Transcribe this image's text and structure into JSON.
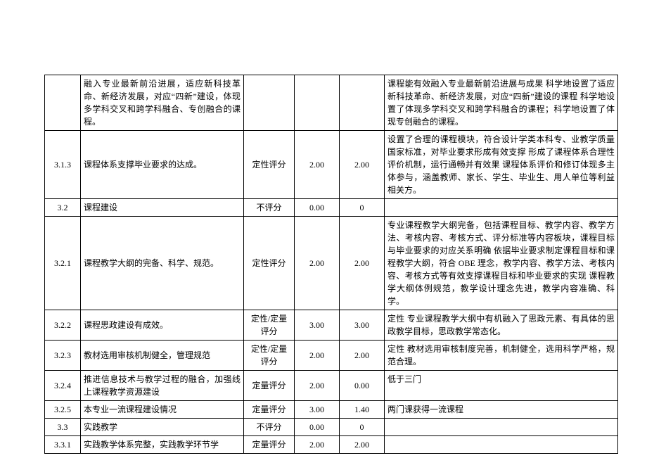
{
  "table": {
    "columns": {
      "idx_width": 42,
      "item_width": 223,
      "type_width": 63,
      "sc1_width": 55,
      "sc2_width": 55,
      "note_width": 323
    },
    "rows": [
      {
        "idx": "",
        "item": "融入专业最新前沿进展，适应新科技革命、新经济发展，对应“四新”建设，体现多学科交叉和跨学科融合、专创融合的课程。",
        "type": "",
        "sc1": "",
        "sc2": "",
        "note": "课程能有效融入专业最新前沿进展与成果 科学地设置了适应新科技革命、新经济发展，对应“四新”建设的课程 科学地设置了体现多学科交叉和跨学科融合的课程；科学地设置了体现专创融合的课程。"
      },
      {
        "idx": "3.1.3",
        "item": "课程体系支撑毕业要求的达成。",
        "type": "定性评分",
        "sc1": "2.00",
        "sc2": "2.00",
        "note": "设置了合理的课程模块，符合设计学类本科专、业教学质量国家标准，对毕业要求形成有效支撑 形成了课程体系合理性评价机制，运行通畅并有效果 课程体系评价和修订体现多主体参与，涵盖教师、家长、学生、毕业生、用人单位等利益相关方。"
      },
      {
        "idx": "3.2",
        "item": "课程建设",
        "type": "不评分",
        "sc1": "0.00",
        "sc2": "0",
        "note": ""
      },
      {
        "idx": "3.2.1",
        "item": "课程教学大纲的完备、科学、规范。",
        "type": "定性评分",
        "sc1": "2.00",
        "sc2": "2.00",
        "note": "专业课程教学大纲完备，包括课程目标、教学内容、教学方法、考核内容、考核方式、评分标准等内容板块，课程目标与毕业要求的对应关系明确 依据毕业要求制定课程目标和课程教学大纲，符合 OBE 理念，教学内容、教学方法、考核内容、考核方式等有效支撑课程目标和毕业要求的实现 课程教学大纲体例规范，教学设计理念先进，教学内容准确、科学。"
      },
      {
        "idx": "3.2.2",
        "item": "课程思政建设有成效。",
        "type": "定性/定量评分",
        "sc1": "3.00",
        "sc2": "3.00",
        "note": "定性 专业课程教学大纲中有机融入了思政元素、有具体的思政教学目标，思政教学常态化。"
      },
      {
        "idx": "3.2.3",
        "item": "教材选用审核机制健全，管理规范",
        "type": "定性/定量评分",
        "sc1": "2.00",
        "sc2": "2.00",
        "note": "定性 教材选用审核制度完善，机制健全，选用科学严格，规范合理。"
      },
      {
        "idx": "3.2.4",
        "item": "推进信息技术与教学过程的融合，加强线上课程教学资源建设",
        "type": "定量评分",
        "sc1": "2.00",
        "sc2": "0.00",
        "note": "低于三门"
      },
      {
        "idx": "3.2.5",
        "item": "本专业一流课程建设情况",
        "type": "定量评分",
        "sc1": "3.00",
        "sc2": "1.40",
        "note": "两门课获得一流课程"
      },
      {
        "idx": "3.3",
        "item": "实践教学",
        "type": "不评分",
        "sc1": "0.00",
        "sc2": "0",
        "note": ""
      },
      {
        "idx": "3.3.1",
        "item": "实践教学体系完整，实践教学环节学",
        "type": "定量评分",
        "sc1": "2.00",
        "sc2": "2.00",
        "note": ""
      }
    ]
  }
}
